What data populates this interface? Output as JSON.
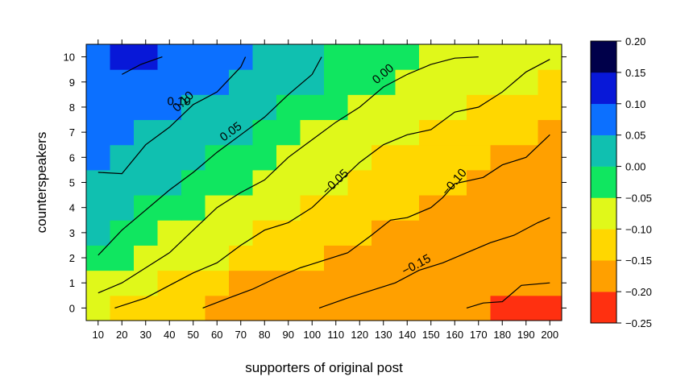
{
  "chart_data": {
    "type": "heatmap",
    "title": "",
    "xlabel": "supporters of original post",
    "ylabel": "counterspeakers",
    "x": [
      10,
      20,
      30,
      40,
      50,
      60,
      70,
      80,
      90,
      100,
      110,
      120,
      130,
      140,
      150,
      160,
      170,
      180,
      190,
      200
    ],
    "y": [
      0,
      1,
      2,
      3,
      4,
      5,
      6,
      7,
      8,
      9,
      10
    ],
    "xlim": [
      5,
      205
    ],
    "ylim": [
      -0.5,
      10.5
    ],
    "x_ticks": [
      "10",
      "20",
      "30",
      "40",
      "50",
      "60",
      "70",
      "80",
      "90",
      "100",
      "110",
      "120",
      "130",
      "140",
      "150",
      "160",
      "170",
      "180",
      "190",
      "200"
    ],
    "y_ticks": [
      "0",
      "1",
      "2",
      "3",
      "4",
      "5",
      "6",
      "7",
      "8",
      "9",
      "10"
    ],
    "colorbar": {
      "breaks": [
        -0.25,
        -0.2,
        -0.15,
        -0.1,
        -0.05,
        0.0,
        0.05,
        0.1,
        0.15,
        0.2
      ],
      "labels": [
        "−0.25",
        "−0.20",
        "−0.15",
        "−0.10",
        "−0.05",
        "0.00",
        "0.05",
        "0.10",
        "0.15",
        "0.20"
      ],
      "colors": [
        "#ff3010",
        "#ffa000",
        "#ffd700",
        "#e0f81a",
        "#10e660",
        "#10c0b0",
        "#0c70ff",
        "#0818d8",
        "#00004a"
      ]
    },
    "z_bins": [
      [
        3,
        2,
        2,
        2,
        2,
        1,
        1,
        1,
        1,
        1,
        1,
        1,
        1,
        1,
        1,
        1,
        1,
        0,
        0,
        0
      ],
      [
        3,
        3,
        3,
        2,
        2,
        2,
        1,
        1,
        1,
        1,
        1,
        1,
        1,
        1,
        1,
        1,
        1,
        1,
        1,
        1
      ],
      [
        4,
        4,
        3,
        3,
        3,
        3,
        2,
        2,
        2,
        2,
        1,
        1,
        1,
        1,
        1,
        1,
        1,
        1,
        1,
        1
      ],
      [
        5,
        4,
        4,
        3,
        3,
        3,
        3,
        2,
        2,
        2,
        2,
        2,
        1,
        1,
        1,
        1,
        1,
        1,
        1,
        1
      ],
      [
        5,
        5,
        4,
        4,
        4,
        3,
        3,
        3,
        3,
        2,
        2,
        2,
        2,
        2,
        1,
        1,
        1,
        1,
        1,
        1
      ],
      [
        5,
        5,
        5,
        5,
        4,
        4,
        4,
        3,
        3,
        3,
        3,
        2,
        2,
        2,
        2,
        2,
        1,
        1,
        1,
        1
      ],
      [
        6,
        5,
        5,
        5,
        5,
        4,
        4,
        4,
        3,
        3,
        3,
        3,
        2,
        2,
        2,
        2,
        2,
        1,
        1,
        1
      ],
      [
        6,
        6,
        5,
        5,
        5,
        5,
        5,
        4,
        4,
        3,
        3,
        3,
        3,
        3,
        2,
        2,
        2,
        2,
        2,
        1
      ],
      [
        6,
        6,
        6,
        6,
        5,
        5,
        5,
        5,
        4,
        4,
        4,
        3,
        3,
        3,
        3,
        3,
        2,
        2,
        2,
        2
      ],
      [
        6,
        6,
        6,
        6,
        6,
        6,
        5,
        5,
        5,
        5,
        4,
        4,
        4,
        3,
        3,
        3,
        3,
        3,
        3,
        2
      ],
      [
        6,
        7,
        7,
        6,
        6,
        6,
        6,
        5,
        5,
        5,
        4,
        4,
        4,
        4,
        3,
        3,
        3,
        3,
        3,
        3
      ]
    ],
    "contours": [
      {
        "label": "0.10",
        "label_at": [
          44,
          8.2
        ],
        "points": [
          [
            20,
            9.3
          ],
          [
            28,
            9.7
          ],
          [
            37,
            10
          ]
        ]
      },
      {
        "label": "0.10",
        "label_at": [
          46,
          8.2
        ],
        "points": [
          [
            10,
            5.4
          ],
          [
            20,
            5.35
          ],
          [
            30,
            6.5
          ],
          [
            40,
            7.2
          ],
          [
            50,
            8.1
          ],
          [
            60,
            8.6
          ],
          [
            70,
            9.6
          ],
          [
            72,
            10
          ]
        ]
      },
      {
        "label": "0.05",
        "label_at": [
          66,
          7
        ],
        "points": [
          [
            10,
            2.1
          ],
          [
            20,
            3.1
          ],
          [
            30,
            3.9
          ],
          [
            40,
            4.7
          ],
          [
            50,
            5.4
          ],
          [
            60,
            6.2
          ],
          [
            70,
            6.9
          ],
          [
            80,
            7.6
          ],
          [
            90,
            8.5
          ],
          [
            100,
            9.3
          ],
          [
            104,
            10
          ]
        ]
      },
      {
        "label": "0.00",
        "label_at": [
          130,
          9.3
        ],
        "points": [
          [
            10,
            0.6
          ],
          [
            20,
            1.0
          ],
          [
            30,
            1.6
          ],
          [
            40,
            2.2
          ],
          [
            50,
            3.1
          ],
          [
            60,
            4.0
          ],
          [
            70,
            4.6
          ],
          [
            80,
            5.1
          ],
          [
            90,
            6.0
          ],
          [
            100,
            6.7
          ],
          [
            110,
            7.4
          ],
          [
            120,
            8.0
          ],
          [
            130,
            8.8
          ],
          [
            140,
            9.3
          ],
          [
            150,
            9.7
          ],
          [
            160,
            9.95
          ],
          [
            170,
            10
          ]
        ]
      },
      {
        "label": "−0.05",
        "label_at": [
          110,
          5
        ],
        "points": [
          [
            17,
            0
          ],
          [
            30,
            0.4
          ],
          [
            40,
            0.9
          ],
          [
            50,
            1.4
          ],
          [
            60,
            1.8
          ],
          [
            70,
            2.5
          ],
          [
            80,
            3.1
          ],
          [
            90,
            3.4
          ],
          [
            100,
            4.0
          ],
          [
            110,
            4.9
          ],
          [
            120,
            5.8
          ],
          [
            130,
            6.5
          ],
          [
            140,
            6.9
          ],
          [
            150,
            7.1
          ],
          [
            160,
            7.8
          ],
          [
            170,
            8.0
          ],
          [
            180,
            8.6
          ],
          [
            190,
            9.4
          ],
          [
            200,
            9.9
          ]
        ]
      },
      {
        "label": "−0.10",
        "label_at": [
          160,
          5
        ],
        "points": [
          [
            54,
            0
          ],
          [
            65,
            0.4
          ],
          [
            75,
            0.75
          ],
          [
            85,
            1.2
          ],
          [
            95,
            1.6
          ],
          [
            105,
            1.9
          ],
          [
            115,
            2.2
          ],
          [
            125,
            2.9
          ],
          [
            133,
            3.5
          ],
          [
            140,
            3.6
          ],
          [
            150,
            4.0
          ],
          [
            155,
            4.4
          ],
          [
            160,
            4.95
          ],
          [
            172,
            5.2
          ],
          [
            180,
            5.7
          ],
          [
            190,
            6.0
          ],
          [
            200,
            6.9
          ]
        ]
      },
      {
        "label": "−0.15",
        "label_at": [
          144,
          1.7
        ],
        "points": [
          [
            103,
            0
          ],
          [
            115,
            0.4
          ],
          [
            125,
            0.7
          ],
          [
            135,
            1.0
          ],
          [
            145,
            1.5
          ],
          [
            155,
            1.8
          ],
          [
            165,
            2.2
          ],
          [
            175,
            2.6
          ],
          [
            185,
            2.9
          ],
          [
            195,
            3.4
          ],
          [
            200,
            3.6
          ]
        ]
      },
      {
        "label": "",
        "label_at": null,
        "points": [
          [
            165,
            0
          ],
          [
            172,
            0.2
          ],
          [
            180,
            0.25
          ],
          [
            188,
            0.9
          ],
          [
            200,
            1.0
          ]
        ]
      }
    ]
  }
}
